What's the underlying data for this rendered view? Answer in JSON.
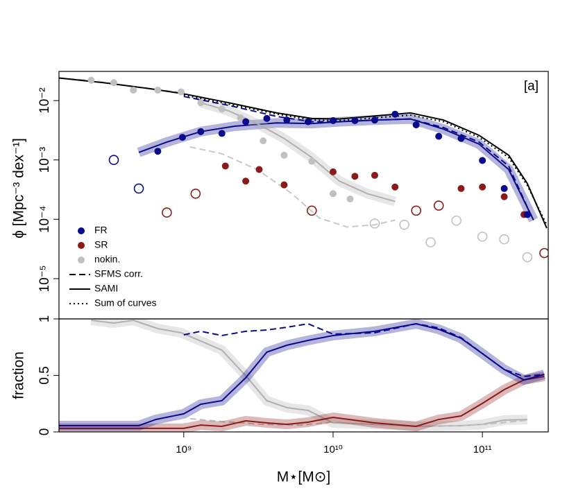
{
  "chart_data": [
    {
      "type": "line",
      "xscale": "log",
      "yscale": "log",
      "ylabel": "ϕ [Mpc⁻³ dex⁻¹]",
      "annotation": "[a]",
      "xlim": [
        146000000.0,
        276000000000.0
      ],
      "ylim": [
        2.1e-06,
        0.031
      ],
      "yticks": [
        {
          "value": 0.01,
          "label": "10⁻²"
        },
        {
          "value": 0.001,
          "label": "10⁻³"
        },
        {
          "value": 0.0001,
          "label": "10⁻⁴"
        },
        {
          "value": 1e-05,
          "label": "10⁻⁵"
        }
      ],
      "legend_corner": "bottom left",
      "legend": [
        {
          "name": "FR",
          "symbol": "point",
          "color": "#0a0a8c"
        },
        {
          "name": "SR",
          "symbol": "point",
          "color": "#8b1a1a"
        },
        {
          "name": "nokin.",
          "symbol": "point",
          "color": "#c0c0c0"
        },
        {
          "name": "SFMS corr.",
          "symbol": "dashed",
          "color": "#000000"
        },
        {
          "name": "SAMI",
          "symbol": "solid",
          "color": "#000000"
        },
        {
          "name": "Sum of curves",
          "symbol": "dotted",
          "color": "#000000"
        }
      ],
      "series": [
        {
          "kind": "line",
          "dash": "solid",
          "band": true,
          "color": "#0a0a8c",
          "x": [
            500000000.0,
            770000000.0,
            1300000000.0,
            2200000000.0,
            4200000000.0,
            7200000000.0,
            11000000000.0,
            19000000000.0,
            33000000000.0,
            55000000000.0,
            95000000000.0,
            150000000000.0,
            220000000000.0
          ],
          "values": [
            0.00134,
            0.002,
            0.003,
            0.0037,
            0.0042,
            0.0041,
            0.0044,
            0.0047,
            0.0049,
            0.0033,
            0.00185,
            0.00069,
            9.7e-05
          ]
        },
        {
          "kind": "line",
          "dash": "solid",
          "band": true,
          "color": "#b0b0b0",
          "x": [
            1300000000.0,
            2000000000.0,
            3100000000.0,
            4700000000.0,
            7200000000.0,
            11000000000.0,
            17000000000.0,
            26000000000.0
          ],
          "values": [
            0.0092,
            0.0067,
            0.0041,
            0.0023,
            0.0011,
            0.00044,
            0.00027,
            0.0002
          ]
        },
        {
          "kind": "line",
          "dash": "dashed",
          "color": "#c8c8c8",
          "x": [
            146000000.0,
            240000000.0,
            460000000.0,
            960000000.0,
            null,
            1100000000.0,
            1800000000.0,
            3100000000.0,
            5300000000.0,
            8100000000.0,
            12400000000.0,
            19000000000.0,
            26000000000.0
          ],
          "values": [
            0.024,
            0.022,
            0.017,
            0.0138,
            null,
            0.00166,
            0.00127,
            0.00069,
            0.00027,
            0.000105,
            7.4e-05,
            8.1e-05,
            9.7e-05
          ]
        },
        {
          "kind": "line",
          "dash": "dashed",
          "color": "#0a0a8c",
          "x": [
            1000000000.0,
            2000000000.0,
            4200000000.0,
            7200000000.0,
            11000000000.0,
            19000000000.0,
            33000000000.0,
            55000000000.0,
            95000000000.0,
            150000000000.0,
            200000000000.0,
            220000000000.0
          ],
          "values": [
            0.0117,
            0.0083,
            0.0054,
            0.0044,
            0.0044,
            0.0047,
            0.0049,
            0.0035,
            0.002,
            0.00079,
            0.00016,
            9.7e-05
          ]
        },
        {
          "kind": "line",
          "dash": "solid",
          "color": "#000000",
          "x": [
            146000000.0,
            290000000.0,
            580000000.0,
            1000000000.0,
            2000000000.0,
            4200000000.0,
            7200000000.0,
            11000000000.0,
            19000000000.0,
            33000000000.0,
            55000000000.0,
            95000000000.0,
            150000000000.0,
            200000000000.0,
            270000000000.0
          ],
          "values": [
            0.024,
            0.02,
            0.016,
            0.013,
            0.0092,
            0.0062,
            0.005,
            0.0049,
            0.0055,
            0.0062,
            0.0047,
            0.0026,
            0.0012,
            0.0004,
            7.1e-05
          ]
        },
        {
          "kind": "line",
          "dash": "dotted",
          "color": "#000000",
          "x": [
            1000000000.0,
            2000000000.0,
            4200000000.0,
            7200000000.0,
            11000000000.0,
            19000000000.0,
            33000000000.0,
            55000000000.0,
            95000000000.0,
            150000000000.0,
            200000000000.0,
            270000000000.0
          ],
          "values": [
            0.0124,
            0.0087,
            0.0059,
            0.0047,
            0.0046,
            0.0051,
            0.0057,
            0.0044,
            0.0024,
            0.0011,
            0.00037,
            8.1e-05
          ]
        },
        {
          "kind": "points",
          "marker": "filled",
          "color": "#c0c0c0",
          "x": [
            240000000.0,
            340000000.0,
            460000000.0,
            670000000.0,
            960000000.0,
            1300000000.0,
            1800000000.0,
            2400000000.0,
            3400000000.0,
            4700000000.0,
            7200000000.0,
            10000000000.0,
            13000000000.0
          ],
          "values": [
            0.022,
            0.02,
            0.015,
            0.015,
            0.014,
            0.0092,
            0.0072,
            0.0051,
            0.0021,
            0.0012,
            0.00095,
            0.00027,
            0.00022
          ]
        },
        {
          "kind": "points",
          "marker": "open",
          "color": "#c0c0c0",
          "x": [
            19000000000.0,
            30000000000.0,
            45000000000.0,
            67000000000.0,
            100000000000.0,
            140000000000.0,
            200000000000.0
          ],
          "values": [
            8.5e-05,
            8.1e-05,
            4.1e-05,
            9.5e-05,
            5.1e-05,
            4.6e-05,
            2.3e-05
          ]
        },
        {
          "kind": "points",
          "marker": "filled",
          "color": "#8b1a1a",
          "x": [
            1900000000.0,
            2600000000.0,
            3200000000.0,
            4700000000.0,
            10000000000.0,
            14000000000.0,
            19000000000.0,
            26000000000.0,
            72000000000.0,
            100000000000.0,
            140000000000.0,
            190000000000.0
          ],
          "values": [
            0.00079,
            0.00044,
            0.00069,
            0.00038,
            0.00063,
            0.00053,
            0.00055,
            0.00035,
            0.00033,
            0.00035,
            0.00024,
            0.00012
          ]
        },
        {
          "kind": "points",
          "marker": "open",
          "color": "#8b1a1a",
          "x": [
            770000000.0,
            1200000000.0,
            7200000000.0,
            36000000000.0,
            51000000000.0,
            260000000000.0
          ],
          "values": [
            0.00013,
            0.00027,
            0.00014,
            0.00014,
            0.00017,
            2.7e-05
          ]
        },
        {
          "kind": "points",
          "marker": "filled",
          "color": "#0a0a8c",
          "x": [
            670000000.0,
            980000000.0,
            1300000000.0,
            1800000000.0,
            2600000000.0,
            3600000000.0,
            4900000000.0,
            6800000000.0,
            10000000000.0,
            14000000000.0,
            19000000000.0,
            26000000000.0,
            36000000000.0,
            51000000000.0,
            72000000000.0,
            100000000000.0,
            140000000000.0,
            200000000000.0
          ],
          "values": [
            0.0014,
            0.0024,
            0.003,
            0.0028,
            0.0044,
            0.005,
            0.0047,
            0.0044,
            0.0046,
            0.0046,
            0.0047,
            0.0059,
            0.0039,
            0.0025,
            0.0023,
            0.00098,
            0.00033,
            0.00012
          ]
        },
        {
          "kind": "points",
          "marker": "open",
          "color": "#0a0a8c",
          "x": [
            340000000.0,
            500000000.0
          ],
          "values": [
            0.001,
            0.00033
          ]
        }
      ]
    },
    {
      "type": "line",
      "xscale": "log",
      "yscale": "linear",
      "ylabel": "fraction",
      "xlabel": "M⋆[M⊙]",
      "xlim": [
        146000000.0,
        276000000000.0
      ],
      "ylim": [
        0,
        1
      ],
      "xticks": [
        {
          "value": 1000000000.0,
          "label": "10⁹"
        },
        {
          "value": 10000000000.0,
          "label": "10¹⁰"
        },
        {
          "value": 100000000000.0,
          "label": "10¹¹"
        }
      ],
      "yticks": [
        0,
        0.5,
        1
      ],
      "series": [
        {
          "kind": "line",
          "dash": "solid",
          "band": true,
          "color": "#b0b0b0",
          "x": [
            240000000.0,
            340000000.0,
            460000000.0,
            670000000.0,
            960000000.0,
            1300000000.0,
            1800000000.0,
            2600000000.0,
            3600000000.0,
            4900000000.0,
            6800000000.0,
            10000000000.0,
            19000000000.0,
            36000000000.0,
            72000000000.0,
            100000000000.0,
            140000000000.0,
            200000000000.0
          ],
          "values": [
            0.988,
            0.963,
            0.988,
            0.914,
            0.877,
            0.804,
            0.724,
            0.497,
            0.276,
            0.215,
            0.19,
            0.08,
            0.067,
            0.049,
            0.055,
            0.067,
            0.104,
            0.11
          ]
        },
        {
          "kind": "line",
          "dash": "dashed",
          "color": "#c0c0c0",
          "x": [
            1100000000.0,
            1800000000.0,
            3400000000.0,
            6000000000.0,
            10000000000.0,
            19000000000.0,
            36000000000.0,
            67000000000.0,
            105000000000.0,
            200000000000.0
          ],
          "values": [
            0.117,
            0.092,
            0.067,
            0.061,
            0.086,
            0.067,
            0.049,
            0.055,
            0.067,
            0.104
          ]
        },
        {
          "kind": "line",
          "dash": "solid",
          "band": true,
          "color": "#8b1a1a",
          "x": [
            146000000.0,
            1000000000.0,
            1300000000.0,
            1800000000.0,
            2600000000.0,
            3600000000.0,
            4900000000.0,
            6800000000.0,
            10000000000.0,
            19000000000.0,
            36000000000.0,
            51000000000.0,
            72000000000.0,
            100000000000.0,
            140000000000.0,
            190000000000.0,
            260000000000.0
          ],
          "values": [
            0.031,
            0.031,
            0.061,
            0.049,
            0.098,
            0.08,
            0.067,
            0.086,
            0.129,
            0.08,
            0.049,
            0.11,
            0.141,
            0.252,
            0.374,
            0.46,
            0.491
          ]
        },
        {
          "kind": "line",
          "dash": "solid",
          "band": true,
          "color": "#0a0a8c",
          "x": [
            146000000.0,
            500000000.0,
            650000000.0,
            1000000000.0,
            1300000000.0,
            1800000000.0,
            2600000000.0,
            3600000000.0,
            4900000000.0,
            6800000000.0,
            10000000000.0,
            19000000000.0,
            36000000000.0,
            51000000000.0,
            72000000000.0,
            100000000000.0,
            140000000000.0,
            190000000000.0,
            260000000000.0
          ],
          "values": [
            0.055,
            0.055,
            0.11,
            0.16,
            0.245,
            0.276,
            0.479,
            0.706,
            0.767,
            0.81,
            0.853,
            0.89,
            0.957,
            0.908,
            0.828,
            0.693,
            0.552,
            0.46,
            0.509
          ]
        },
        {
          "kind": "line",
          "dash": "dashed",
          "color": "#0a0a8c",
          "x": [
            1000000000.0,
            1300000000.0,
            1800000000.0,
            2600000000.0,
            3600000000.0,
            4900000000.0,
            6800000000.0,
            10000000000.0,
            19000000000.0,
            36000000000.0,
            51000000000.0,
            72000000000.0,
            100000000000.0,
            140000000000.0,
            190000000000.0,
            260000000000.0
          ],
          "values": [
            0.859,
            0.89,
            0.853,
            0.89,
            0.902,
            0.926,
            0.957,
            0.865,
            0.877,
            0.957,
            0.92,
            0.834,
            0.693,
            0.552,
            0.491,
            0.509
          ]
        }
      ]
    }
  ]
}
